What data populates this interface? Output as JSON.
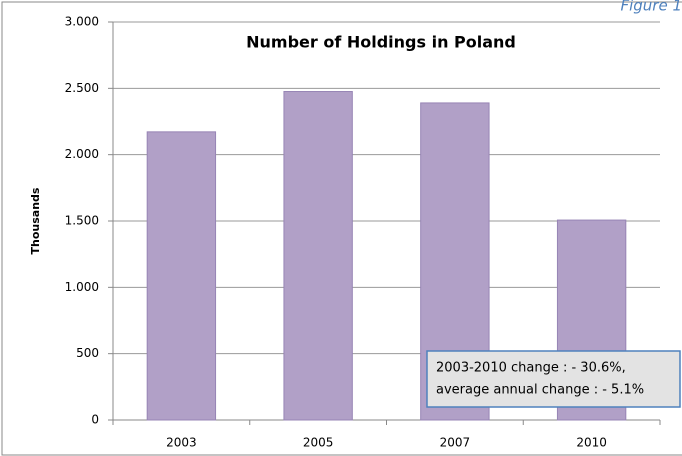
{
  "figure_label": "Figure 1",
  "chart_data": {
    "type": "bar",
    "title": "Number of Holdings in Poland",
    "y_label": "Thousands",
    "categories": [
      "2003",
      "2005",
      "2007",
      "2010"
    ],
    "values": [
      2172,
      2476,
      2390,
      1507
    ],
    "color": "#b1a0c7",
    "ylim": [
      0,
      3000
    ],
    "yticks": [
      0,
      500,
      {
        "value": 1000,
        "label": "1.000"
      },
      {
        "value": 1500,
        "label": "1.500"
      },
      {
        "value": 2000,
        "label": "2.000"
      },
      {
        "value": 2500,
        "label": "2.500"
      },
      {
        "value": 3000,
        "label": "3.000"
      }
    ],
    "grid": true,
    "annotation": [
      "2003-2010 change : - 30.6%,",
      "average annual change : - 5.1%"
    ]
  }
}
